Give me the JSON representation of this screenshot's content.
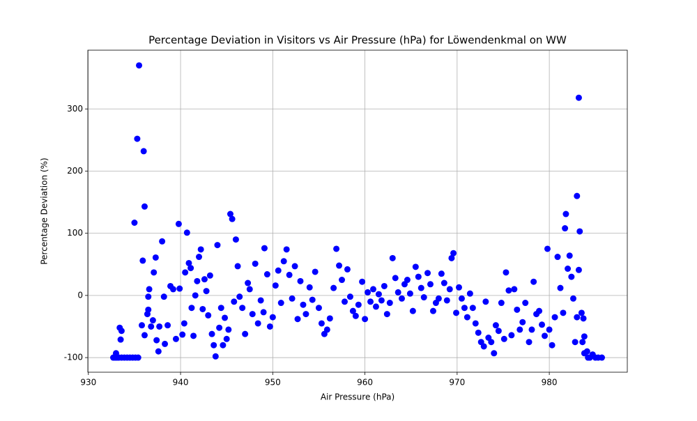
{
  "chart_data": {
    "type": "scatter",
    "title": "Percentage Deviation in Visitors vs Air Pressure (hPa) for Löwendenkmal on WW",
    "x_label": "Air Pressure (hPa)",
    "y_label": "Percentage Deviation (%)",
    "color": "blue",
    "grid": true,
    "xlim": [
      929.94,
      988.46
    ],
    "ylim": [
      -123.5,
      394.5
    ],
    "xticks": [
      930,
      940,
      950,
      960,
      970,
      980
    ],
    "yticks": [
      -100,
      0,
      100,
      200,
      300
    ],
    "x": [
      932.7,
      932.9,
      933.1,
      933.3,
      933.6,
      933.9,
      934.2,
      934.5,
      934.8,
      935.1,
      935.4,
      933.0,
      933.4,
      933.6,
      933.5,
      935.0,
      935.3,
      935.5,
      936.0,
      936.1,
      935.9,
      935.8,
      936.1,
      936.4,
      936.5,
      936.6,
      936.5,
      936.8,
      937.0,
      937.1,
      937.3,
      937.4,
      937.6,
      937.7,
      938.0,
      938.2,
      938.3,
      938.6,
      938.9,
      939.2,
      939.5,
      939.8,
      939.9,
      940.2,
      940.4,
      940.5,
      940.7,
      940.9,
      941.1,
      941.2,
      941.4,
      941.6,
      941.8,
      942.0,
      942.2,
      942.4,
      942.6,
      942.8,
      943.0,
      943.2,
      943.4,
      943.6,
      943.8,
      944.0,
      944.2,
      944.4,
      944.6,
      944.8,
      945.0,
      945.2,
      945.4,
      945.6,
      945.8,
      946.0,
      946.2,
      946.4,
      946.7,
      947.0,
      947.3,
      947.5,
      947.8,
      948.1,
      948.4,
      948.7,
      949.0,
      949.1,
      949.4,
      949.7,
      950.0,
      950.3,
      950.6,
      950.9,
      951.2,
      951.5,
      951.8,
      952.1,
      952.4,
      952.7,
      953.0,
      953.3,
      953.6,
      954.0,
      954.3,
      954.6,
      955.0,
      955.3,
      955.6,
      955.9,
      956.2,
      956.6,
      956.9,
      957.2,
      957.5,
      957.8,
      958.1,
      958.4,
      958.7,
      959.0,
      959.3,
      959.7,
      960.0,
      960.3,
      960.6,
      960.9,
      961.2,
      961.5,
      961.8,
      962.1,
      962.4,
      962.7,
      963.0,
      963.3,
      963.6,
      964.0,
      964.3,
      964.6,
      964.9,
      965.2,
      965.5,
      965.8,
      966.1,
      966.4,
      966.8,
      967.1,
      967.4,
      967.7,
      968.0,
      968.3,
      968.6,
      968.9,
      969.2,
      969.4,
      969.6,
      969.9,
      970.2,
      970.5,
      970.8,
      971.1,
      971.4,
      971.7,
      972.0,
      972.3,
      972.6,
      972.9,
      973.1,
      973.4,
      973.7,
      974.0,
      974.2,
      974.5,
      974.8,
      975.1,
      975.3,
      975.6,
      975.9,
      976.2,
      976.5,
      976.8,
      977.1,
      977.4,
      977.8,
      978.1,
      978.3,
      978.6,
      978.9,
      979.2,
      979.5,
      979.8,
      980.0,
      980.3,
      980.6,
      980.9,
      981.2,
      981.5,
      981.7,
      981.8,
      982.0,
      982.2,
      982.4,
      982.6,
      982.8,
      983.0,
      983.2,
      983.3,
      983.2,
      983.0,
      983.5,
      983.7,
      983.8,
      983.6,
      983.8,
      984.1,
      984.4,
      984.7,
      985.0,
      985.3,
      985.7,
      984.2
    ],
    "values": [
      -100,
      -100,
      -100,
      -100,
      -100,
      -100,
      -100,
      -100,
      -100,
      -100,
      -100,
      -93,
      -52,
      -57,
      -71,
      117,
      252,
      370,
      232,
      143,
      56,
      -48,
      -64,
      -30,
      -23,
      10,
      -2,
      -50,
      -40,
      37,
      61,
      -72,
      -90,
      -50,
      87,
      -2,
      -78,
      -48,
      15,
      10,
      -70,
      115,
      11,
      -63,
      -45,
      37,
      101,
      52,
      44,
      -20,
      -65,
      0,
      23,
      62,
      74,
      -22,
      26,
      7,
      -32,
      32,
      -62,
      -80,
      -98,
      81,
      -52,
      -20,
      -80,
      -36,
      -70,
      -55,
      131,
      123,
      -10,
      90,
      47,
      -2,
      -20,
      -62,
      20,
      10,
      -30,
      51,
      -45,
      -8,
      -27,
      76,
      34,
      -50,
      -35,
      16,
      40,
      -12,
      55,
      74,
      33,
      -5,
      47,
      -38,
      23,
      -15,
      -30,
      13,
      -7,
      38,
      -20,
      -45,
      -62,
      -55,
      -37,
      12,
      75,
      48,
      25,
      -10,
      42,
      -2,
      -25,
      -33,
      -15,
      22,
      -38,
      5,
      -10,
      10,
      -18,
      2,
      -8,
      15,
      -30,
      -12,
      60,
      28,
      5,
      -5,
      18,
      25,
      3,
      -25,
      46,
      30,
      12,
      -3,
      36,
      18,
      -25,
      -12,
      -5,
      35,
      20,
      -8,
      10,
      60,
      68,
      -28,
      13,
      -5,
      -20,
      -35,
      3,
      -20,
      -45,
      -60,
      -75,
      -82,
      -10,
      -68,
      -75,
      -93,
      -48,
      -57,
      -12,
      -70,
      37,
      8,
      -64,
      10,
      -23,
      -55,
      -43,
      -12,
      -75,
      -55,
      22,
      -30,
      -25,
      -47,
      -65,
      75,
      -55,
      -80,
      -35,
      62,
      12,
      -28,
      108,
      131,
      43,
      64,
      30,
      -5,
      -75,
      160,
      318,
      103,
      41,
      -35,
      -28,
      -37,
      -66,
      -75,
      -93,
      -90,
      -100,
      -95,
      -100,
      -100,
      -100,
      -100
    ]
  }
}
